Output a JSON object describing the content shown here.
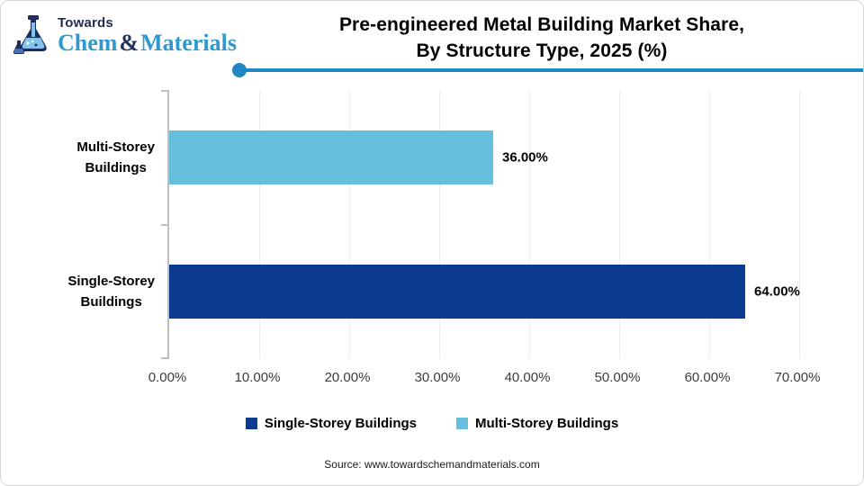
{
  "logo": {
    "top_text": "Towards",
    "brand_part1": "Chem",
    "brand_amp": "&",
    "brand_part2": "Materials"
  },
  "header": {
    "title_line1": "Pre-engineered Metal Building Market Share,",
    "title_line2": "By Structure Type, 2025 (%)"
  },
  "chart_data": {
    "type": "bar",
    "orientation": "horizontal",
    "title": "Pre-engineered Metal Building Market Share, By Structure Type, 2025 (%)",
    "categories": [
      "Multi-Storey Buildings",
      "Single-Storey Buildings"
    ],
    "category_lines": [
      [
        "Multi-Storey",
        "Buildings"
      ],
      [
        "Single-Storey",
        "Buildings"
      ]
    ],
    "values": [
      36.0,
      64.0
    ],
    "value_labels": [
      "36.00%",
      "64.00%"
    ],
    "bar_colors": [
      "#66bfdd",
      "#0b3b8e"
    ],
    "x_ticks": [
      "0.00%",
      "10.00%",
      "20.00%",
      "30.00%",
      "40.00%",
      "50.00%",
      "60.00%",
      "70.00%"
    ],
    "xlim": [
      0,
      70
    ],
    "grid": true,
    "legend_position": "bottom",
    "legend": [
      {
        "label": "Single-Storey Buildings",
        "color": "#0b3b8e"
      },
      {
        "label": "Multi-Storey Buildings",
        "color": "#66bfdd"
      }
    ]
  },
  "source_text": "Source: www.towardschemandmaterials.com",
  "colors": {
    "accent_line": "#1e87c4",
    "axis": "#bfbfbf",
    "grid": "#ececec",
    "navy": "#0b3b8e",
    "light_blue": "#66bfdd"
  }
}
